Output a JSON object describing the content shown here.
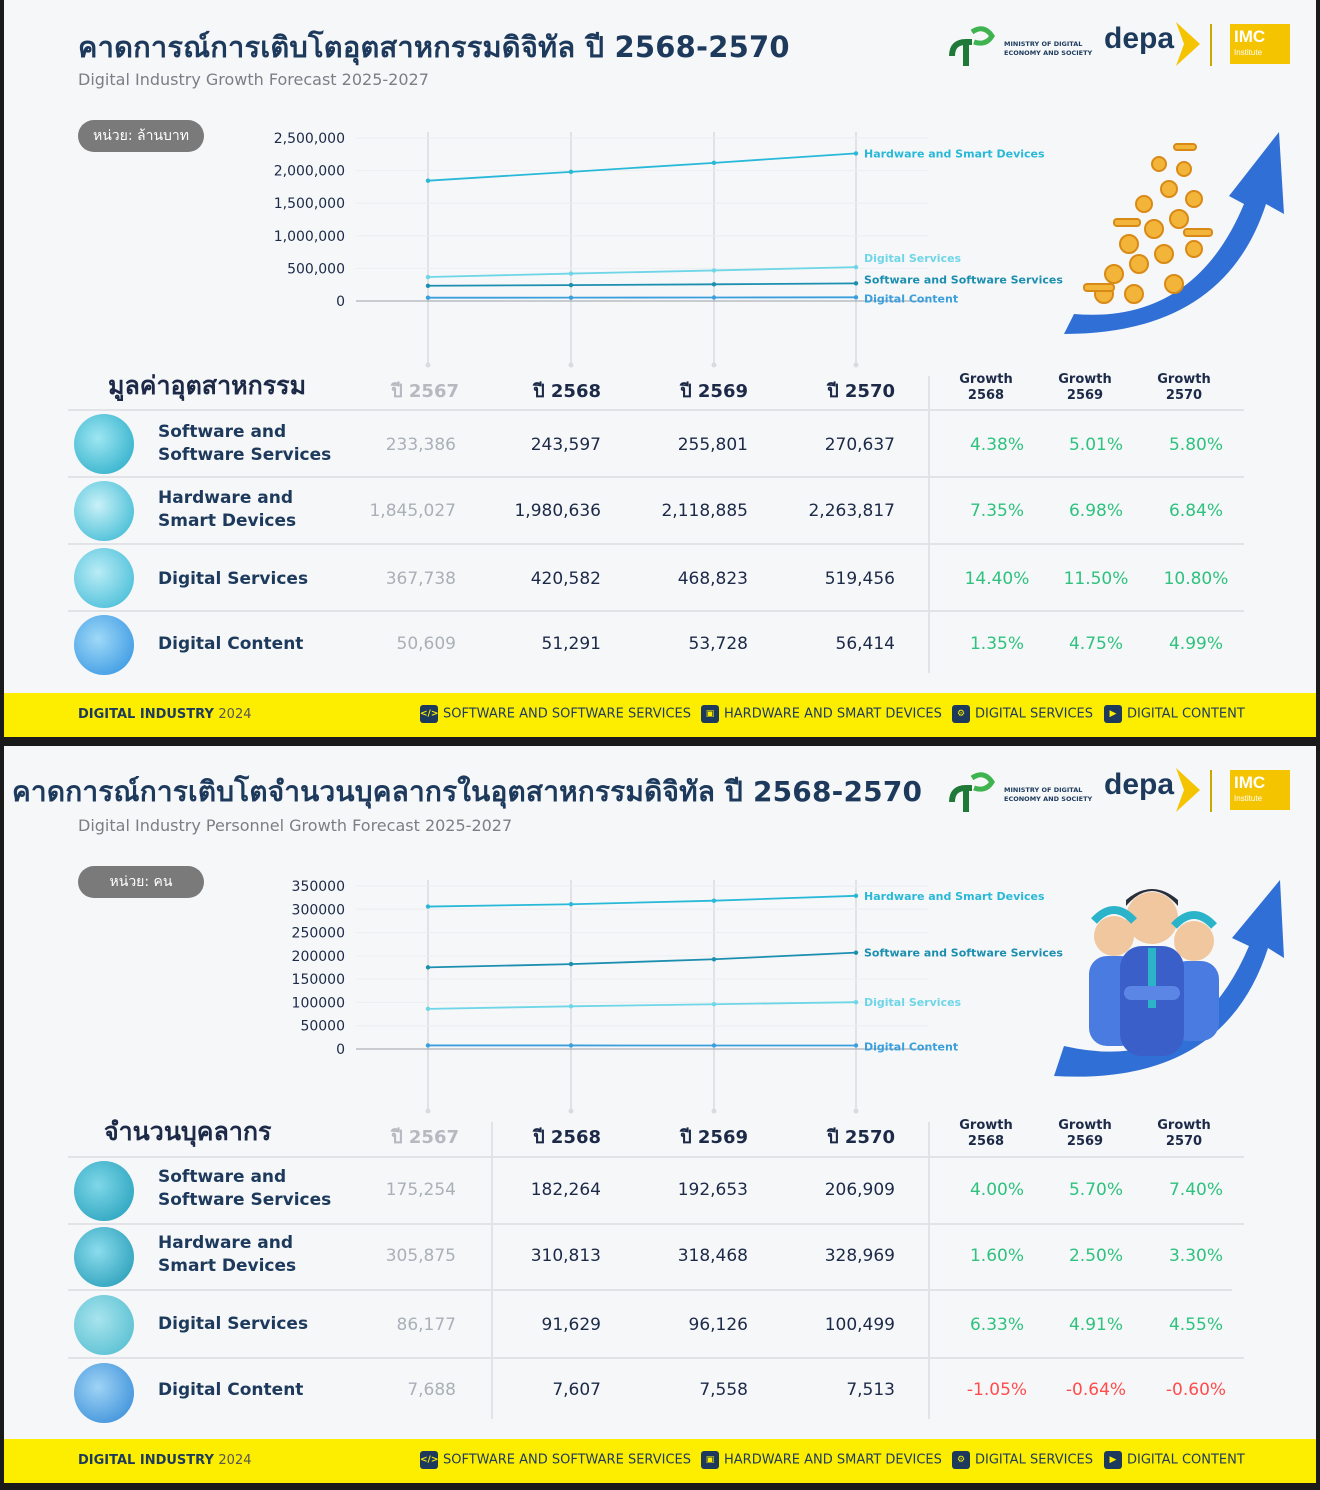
{
  "panel1": {
    "title": "คาดการณ์การเติบโตอุตสาหกรรมดิจิทัล ปี 2568-2570",
    "subtitle": "Digital Industry Growth Forecast 2025-2027",
    "unit": "หน่วย: ล้านบาท",
    "section_title": "มูลค่าอุตสาหกรรม",
    "years": [
      "ปี 2567",
      "ปี 2568",
      "ปี 2569",
      "ปี 2570"
    ],
    "growth_headers": [
      [
        "Growth",
        "2568"
      ],
      [
        "Growth",
        "2569"
      ],
      [
        "Growth",
        "2570"
      ]
    ],
    "rows": [
      {
        "name1": "Software and",
        "name2": "Software Services",
        "values": [
          "233,386",
          "243,597",
          "255,801",
          "270,637"
        ],
        "growth": [
          "4.38%",
          "5.01%",
          "5.80%"
        ]
      },
      {
        "name1": "Hardware and",
        "name2": "Smart Devices",
        "values": [
          "1,845,027",
          "1,980,636",
          "2,118,885",
          "2,263,817"
        ],
        "growth": [
          "7.35%",
          "6.98%",
          "6.84%"
        ]
      },
      {
        "name1": "Digital Services",
        "name2": "",
        "values": [
          "367,738",
          "420,582",
          "468,823",
          "519,456"
        ],
        "growth": [
          "14.40%",
          "11.50%",
          "10.80%"
        ]
      },
      {
        "name1": "Digital Content",
        "name2": "",
        "values": [
          "50,609",
          "51,291",
          "53,728",
          "56,414"
        ],
        "growth": [
          "1.35%",
          "4.75%",
          "4.99%"
        ]
      }
    ]
  },
  "panel2": {
    "title": "คาดการณ์การเติบโตจำนวนบุคลากรในอุตสาหกรรมดิจิทัล ปี 2568-2570",
    "subtitle": "Digital Industry Personnel Growth Forecast 2025-2027",
    "unit": "หน่วย: คน",
    "section_title": "จำนวนบุคลากร",
    "years": [
      "ปี 2567",
      "ปี 2568",
      "ปี 2569",
      "ปี 2570"
    ],
    "growth_headers": [
      [
        "Growth",
        "2568"
      ],
      [
        "Growth",
        "2569"
      ],
      [
        "Growth",
        "2570"
      ]
    ],
    "rows": [
      {
        "name1": "Software and",
        "name2": "Software Services",
        "values": [
          "175,254",
          "182,264",
          "192,653",
          "206,909"
        ],
        "growth": [
          "4.00%",
          "5.70%",
          "7.40%"
        ]
      },
      {
        "name1": "Hardware and",
        "name2": "Smart Devices",
        "values": [
          "305,875",
          "310,813",
          "318,468",
          "328,969"
        ],
        "growth": [
          "1.60%",
          "2.50%",
          "3.30%"
        ]
      },
      {
        "name1": "Digital Services",
        "name2": "",
        "values": [
          "86,177",
          "91,629",
          "96,126",
          "100,499"
        ],
        "growth": [
          "6.33%",
          "4.91%",
          "4.55%"
        ]
      },
      {
        "name1": "Digital Content",
        "name2": "",
        "values": [
          "7,688",
          "7,607",
          "7,558",
          "7,513"
        ],
        "growth": [
          "-1.05%",
          "-0.64%",
          "-0.60%"
        ]
      }
    ]
  },
  "logos": {
    "mdes_line1": "MINISTRY OF DIGITAL",
    "mdes_line2": "ECONOMY AND SOCIETY",
    "depa": "depa",
    "imc": "IMC",
    "imc_sub": "Institute"
  },
  "footer": {
    "brand": "DIGITAL INDUSTRY",
    "year": "2024",
    "items": [
      "SOFTWARE AND SOFTWARE SERVICES",
      "HARDWARE AND SMART DEVICES",
      "DIGITAL SERVICES",
      "DIGITAL CONTENT"
    ]
  },
  "chart_data": [
    {
      "type": "line",
      "x": [
        2567,
        2568,
        2569,
        2570
      ],
      "ylim": [
        0,
        2500000
      ],
      "yticks": [
        "2,500,000",
        "2,000,000",
        "1,500,000",
        "1,000,000",
        "500,000",
        "0"
      ],
      "series": [
        {
          "name": "Hardware and Smart Devices",
          "values": [
            1845027,
            1980636,
            2118885,
            2263817
          ],
          "color": "#29b9d8"
        },
        {
          "name": "Software and Software Services",
          "values": [
            233386,
            243597,
            255801,
            270637
          ],
          "color": "#1c8fb0"
        },
        {
          "name": "Digital Services",
          "values": [
            367738,
            420582,
            468823,
            519456
          ],
          "color": "#6fd6e8"
        },
        {
          "name": "Digital Content",
          "values": [
            50609,
            51291,
            53728,
            56414
          ],
          "color": "#3a9fdc"
        }
      ]
    },
    {
      "type": "line",
      "x": [
        2567,
        2568,
        2569,
        2570
      ],
      "ylim": [
        0,
        350000
      ],
      "yticks": [
        "350000",
        "300000",
        "250000",
        "200000",
        "150000",
        "100000",
        "50000",
        "0"
      ],
      "series": [
        {
          "name": "Hardware and Smart Devices",
          "values": [
            305875,
            310813,
            318468,
            328969
          ],
          "color": "#29b9d8"
        },
        {
          "name": "Software and Software Services",
          "values": [
            175254,
            182264,
            192653,
            206909
          ],
          "color": "#1c8fb0"
        },
        {
          "name": "Digital Services",
          "values": [
            86177,
            91629,
            96126,
            100499
          ],
          "color": "#6fd6e8"
        },
        {
          "name": "Digital Content",
          "values": [
            7688,
            7607,
            7558,
            7513
          ],
          "color": "#3a9fdc"
        }
      ]
    }
  ],
  "colors": {
    "growth_pos": "#2ec27e",
    "growth_neg": "#ff4d4d",
    "footer_bg": "#fdee00",
    "title": "#1d3a5c"
  }
}
